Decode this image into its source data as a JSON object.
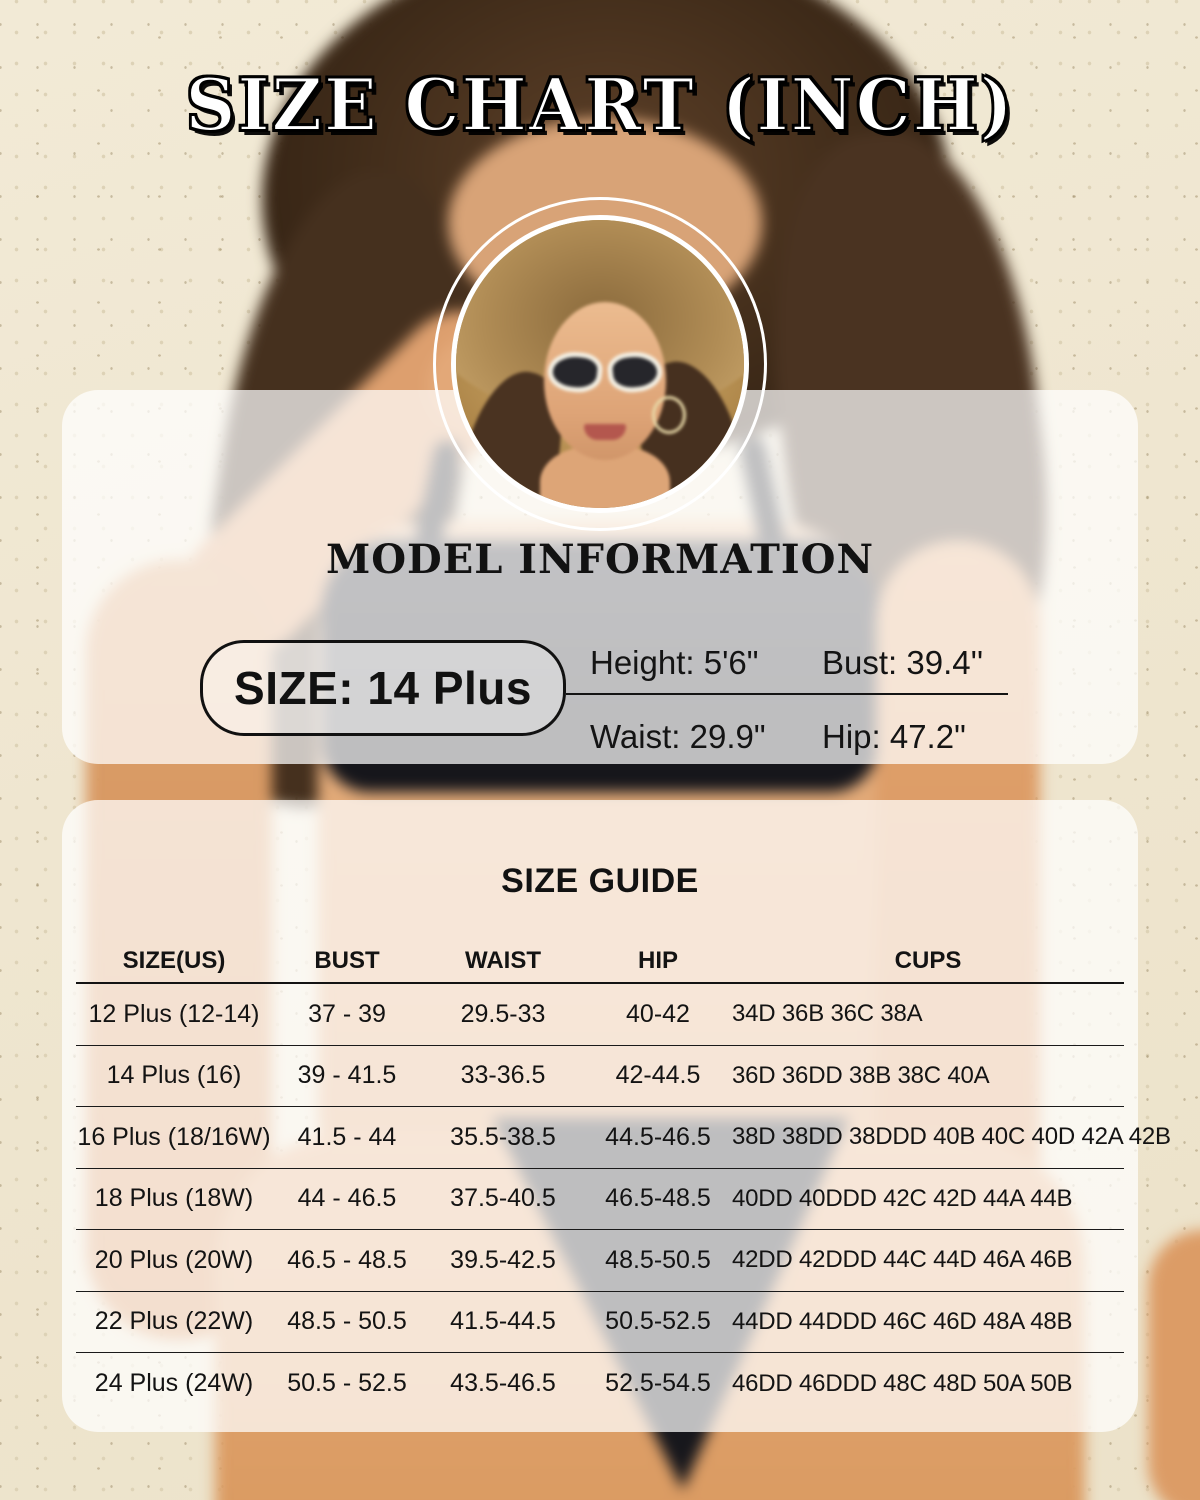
{
  "page": {
    "title": "SIZE CHART (INCH)"
  },
  "colors": {
    "text": "#131313",
    "wall_beige": "#efe6d0",
    "panel_overlay_white": "#ffffff",
    "swimsuit_black": "#17171c",
    "skin_tone": "#dd9f6b",
    "hat_straw": "#c09a5c"
  },
  "model_info": {
    "heading": "MODEL INFORMATION",
    "size_label": "SIZE: 14 Plus",
    "height": "Height: 5'6\"",
    "bust": "Bust: 39.4''",
    "waist": "Waist: 29.9\"",
    "hip": "Hip: 47.2\""
  },
  "size_guide": {
    "heading": "SIZE GUIDE",
    "columns": [
      "SIZE(US)",
      "BUST",
      "WAIST",
      "HIP",
      "CUPS"
    ],
    "rows": [
      {
        "size": "12 Plus (12-14)",
        "bust": "37 - 39",
        "waist": "29.5-33",
        "hip": "40-42",
        "cups": "34D 36B 36C 38A"
      },
      {
        "size": "14 Plus (16)",
        "bust": "39 - 41.5",
        "waist": "33-36.5",
        "hip": "42-44.5",
        "cups": "36D 36DD 38B 38C 40A"
      },
      {
        "size": "16 Plus (18/16W)",
        "bust": "41.5 - 44",
        "waist": "35.5-38.5",
        "hip": "44.5-46.5",
        "cups": "38D 38DD 38DDD 40B 40C 40D 42A 42B"
      },
      {
        "size": "18 Plus (18W)",
        "bust": "44 - 46.5",
        "waist": "37.5-40.5",
        "hip": "46.5-48.5",
        "cups": "40DD 40DDD 42C 42D 44A 44B"
      },
      {
        "size": "20 Plus (20W)",
        "bust": "46.5 - 48.5",
        "waist": "39.5-42.5",
        "hip": "48.5-50.5",
        "cups": "42DD 42DDD 44C 44D 46A 46B"
      },
      {
        "size": "22 Plus (22W)",
        "bust": "48.5 - 50.5",
        "waist": "41.5-44.5",
        "hip": "50.5-52.5",
        "cups": "44DD 44DDD 46C 46D 48A 48B"
      },
      {
        "size": "24 Plus (24W)",
        "bust": "50.5 - 52.5",
        "waist": "43.5-46.5",
        "hip": "52.5-54.5",
        "cups": "46DD 46DDD 48C 48D 50A 50B"
      }
    ]
  }
}
